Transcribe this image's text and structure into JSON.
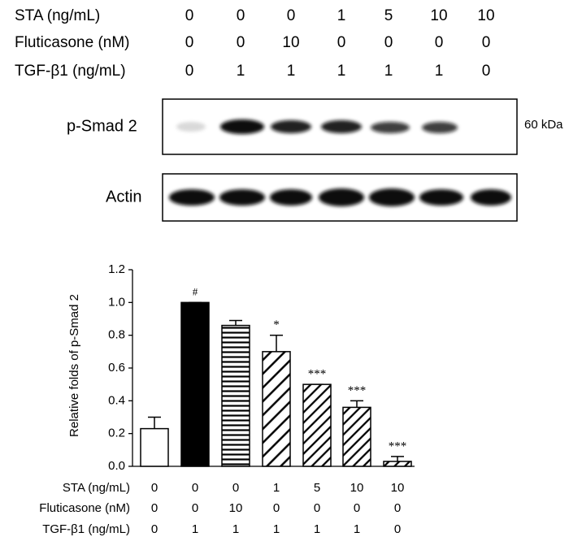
{
  "blot": {
    "conditions": [
      {
        "label": "STA (ng/mL)",
        "values": [
          0,
          0,
          0,
          1,
          5,
          10,
          10
        ]
      },
      {
        "label": "Fluticasone (nM)",
        "values": [
          0,
          0,
          10,
          0,
          0,
          0,
          0
        ]
      },
      {
        "label": "TGF-β1 (ng/mL)",
        "values": [
          0,
          1,
          1,
          1,
          1,
          1,
          0
        ]
      }
    ],
    "bands": [
      {
        "label": "p-Smad 2",
        "size": "60 kDa"
      },
      {
        "label": "Actin"
      }
    ]
  },
  "chart_data": {
    "type": "bar",
    "y_label": "Relative folds of p-Smad 2",
    "values": [
      0.23,
      1.0,
      0.86,
      0.7,
      0.5,
      0.36,
      0.03
    ],
    "errors": [
      0.07,
      0,
      0.03,
      0.1,
      0,
      0.04,
      0.03
    ],
    "annotations": [
      null,
      "#",
      null,
      "*",
      "***",
      "***",
      "***"
    ],
    "patterns": [
      "none",
      "solid",
      "horizontal",
      "diagonal-wide",
      "diagonal",
      "diagonal",
      "diagonal"
    ],
    "color": "#000000",
    "ylim": [
      0,
      1.2
    ],
    "yticks": [
      {
        "value": 0,
        "label": "0.0"
      },
      0.2,
      0.4,
      0.6,
      0.8,
      {
        "value": 1,
        "label": "1.0"
      },
      1.2
    ],
    "conditions": [
      {
        "label": "STA (ng/mL)",
        "values": [
          0,
          0,
          0,
          1,
          5,
          10,
          10
        ]
      },
      {
        "label": "Fluticasone (nM)",
        "values": [
          0,
          0,
          10,
          0,
          0,
          0,
          0
        ]
      },
      {
        "label": "TGF-β1 (ng/mL)",
        "values": [
          0,
          1,
          1,
          1,
          1,
          1,
          0
        ]
      }
    ]
  }
}
